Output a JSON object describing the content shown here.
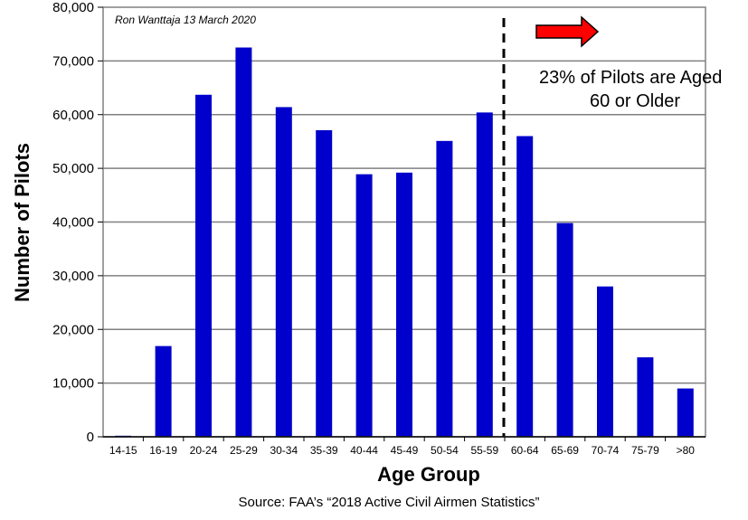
{
  "chart_data": {
    "type": "bar",
    "categories": [
      "14-15",
      "16-19",
      "20-24",
      "25-29",
      "30-34",
      "35-39",
      "40-44",
      "45-49",
      "50-54",
      "55-59",
      "60-64",
      "65-69",
      "70-74",
      "75-79",
      ">80"
    ],
    "values": [
      200,
      16900,
      63700,
      72500,
      61400,
      57100,
      48900,
      49200,
      55100,
      60400,
      56000,
      39800,
      28000,
      14800,
      9000
    ],
    "xlabel": "Age Group",
    "ylabel": "Number of Pilots",
    "ylim": [
      0,
      80000
    ],
    "yticks": [
      0,
      10000,
      20000,
      30000,
      40000,
      50000,
      60000,
      70000,
      80000
    ],
    "ytick_labels": [
      "0",
      "10,000",
      "20,000",
      "30,000",
      "40,000",
      "50,000",
      "60,000",
      "70,000",
      "80,000"
    ],
    "grid": "horizontal",
    "bar_color": "#0000cc",
    "divider_between": [
      "55-59",
      "60-64"
    ],
    "annotations": {
      "credit": "Ron Wanttaja 13 March 2020",
      "callout_line1": "23% of Pilots are Aged",
      "callout_line2": "60 or Older",
      "arrow_color": "#ff0000"
    },
    "source": "Source: FAA’s “2018 Active Civil Airmen Statistics”"
  }
}
